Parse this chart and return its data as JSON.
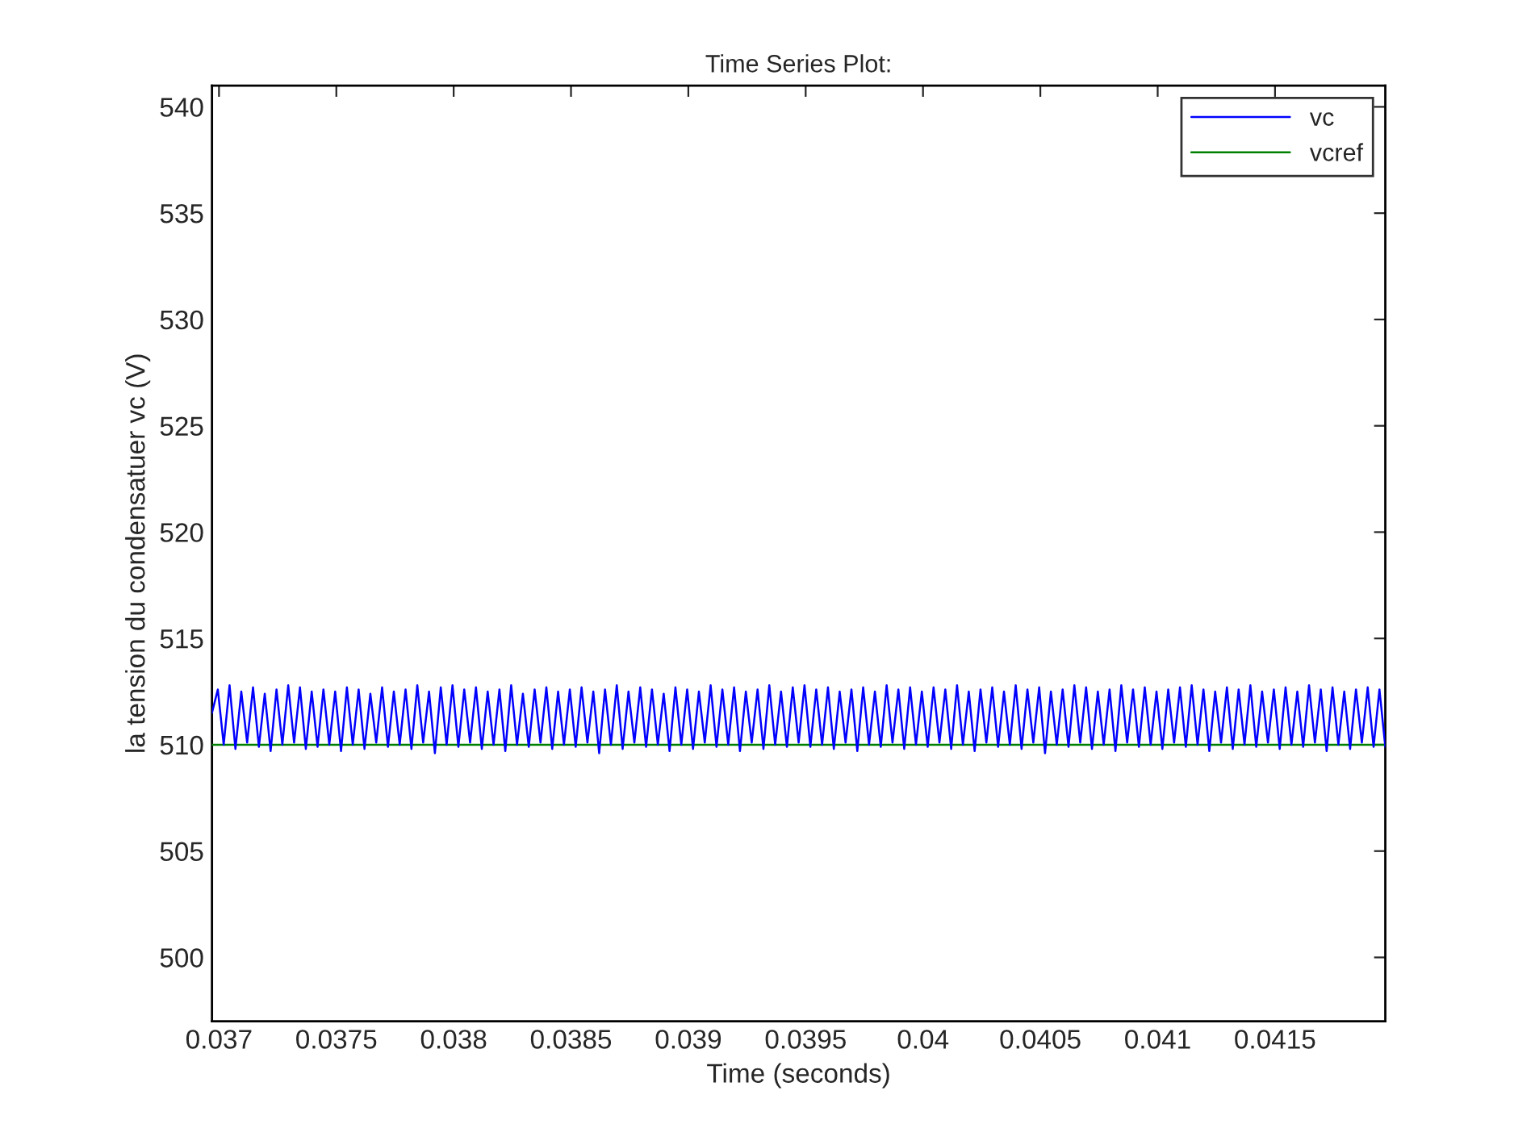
{
  "chart_data": {
    "type": "line",
    "title": "Time Series Plot:",
    "xlabel": "Time (seconds)",
    "ylabel": "la tension du condensatuer vc (V)",
    "xlim": [
      0.03697,
      0.04197
    ],
    "ylim": [
      497,
      541
    ],
    "xticks": [
      0.037,
      0.0375,
      0.038,
      0.0385,
      0.039,
      0.0395,
      0.04,
      0.0405,
      0.041,
      0.0415
    ],
    "yticks": [
      500,
      505,
      510,
      515,
      520,
      525,
      530,
      535,
      540
    ],
    "legend": "top right",
    "series": [
      {
        "name": "vc",
        "color": "#0000ff",
        "x": [
          0.03697,
          0.036995,
          0.03702,
          0.037045,
          0.03707,
          0.037095,
          0.03712,
          0.037145,
          0.03717,
          0.037195,
          0.03722,
          0.037245,
          0.03727,
          0.037295,
          0.03732,
          0.037345,
          0.03737,
          0.037395,
          0.03742,
          0.037445,
          0.03747,
          0.037495,
          0.03752,
          0.037545,
          0.03757,
          0.037595,
          0.03762,
          0.037645,
          0.03767,
          0.037695,
          0.03772,
          0.037745,
          0.03777,
          0.037795,
          0.03782,
          0.037845,
          0.03787,
          0.037895,
          0.03792,
          0.037945,
          0.03797,
          0.037995,
          0.03802,
          0.038045,
          0.03807,
          0.038095,
          0.03812,
          0.038145,
          0.03817,
          0.038195,
          0.03822,
          0.038245,
          0.03827,
          0.038295,
          0.03832,
          0.038345,
          0.03837,
          0.038395,
          0.03842,
          0.038445,
          0.03847,
          0.038495,
          0.03852,
          0.038545,
          0.03857,
          0.038595,
          0.03862,
          0.038645,
          0.03867,
          0.038695,
          0.03872,
          0.038745,
          0.03877,
          0.038795,
          0.03882,
          0.038845,
          0.03887,
          0.038895,
          0.03892,
          0.038945,
          0.03897,
          0.038995,
          0.03902,
          0.039045,
          0.03907,
          0.039095,
          0.03912,
          0.039145,
          0.03917,
          0.039195,
          0.03922,
          0.039245,
          0.03927,
          0.039295,
          0.03932,
          0.039345,
          0.03937,
          0.039395,
          0.03942,
          0.039445,
          0.03947,
          0.039495,
          0.03952,
          0.039545,
          0.03957,
          0.039595,
          0.03962,
          0.039645,
          0.03967,
          0.039695,
          0.03972,
          0.039745,
          0.03977,
          0.039795,
          0.03982,
          0.039845,
          0.03987,
          0.039895,
          0.03992,
          0.039945,
          0.03997,
          0.039995,
          0.04002,
          0.040045,
          0.04007,
          0.040095,
          0.04012,
          0.040145,
          0.04017,
          0.040195,
          0.04022,
          0.040245,
          0.04027,
          0.040295,
          0.04032,
          0.040345,
          0.04037,
          0.040395,
          0.04042,
          0.040445,
          0.04047,
          0.040495,
          0.04052,
          0.040545,
          0.04057,
          0.040595,
          0.04062,
          0.040645,
          0.04067,
          0.040695,
          0.04072,
          0.040745,
          0.04077,
          0.040795,
          0.04082,
          0.040845,
          0.04087,
          0.040895,
          0.04092,
          0.040945,
          0.04097,
          0.040995,
          0.04102,
          0.041045,
          0.04107,
          0.041095,
          0.04112,
          0.041145,
          0.04117,
          0.041195,
          0.04122,
          0.041245,
          0.04127,
          0.041295,
          0.04132,
          0.041345,
          0.04137,
          0.041395,
          0.04142,
          0.041445,
          0.04147,
          0.041495,
          0.04152,
          0.041545,
          0.04157,
          0.041595,
          0.04162,
          0.041645,
          0.04167,
          0.041695,
          0.04172,
          0.041745,
          0.04177,
          0.041795,
          0.04182,
          0.041845,
          0.04187,
          0.041895,
          0.04192,
          0.041945,
          0.04197
        ],
        "values": [
          511.5,
          512.6,
          510.0,
          512.8,
          509.8,
          512.5,
          510.1,
          512.7,
          509.9,
          512.4,
          509.7,
          512.6,
          510.0,
          512.8,
          510.1,
          512.7,
          509.8,
          512.5,
          509.9,
          512.6,
          510.0,
          512.5,
          509.7,
          512.7,
          510.0,
          512.6,
          509.8,
          512.4,
          510.1,
          512.7,
          509.9,
          512.5,
          510.0,
          512.6,
          509.8,
          512.8,
          510.1,
          512.5,
          509.6,
          512.7,
          510.0,
          512.8,
          509.9,
          512.6,
          510.1,
          512.7,
          509.8,
          512.5,
          510.0,
          512.6,
          509.7,
          512.8,
          510.0,
          512.4,
          509.9,
          512.6,
          510.1,
          512.7,
          509.8,
          512.5,
          510.0,
          512.6,
          509.9,
          512.7,
          510.1,
          512.5,
          509.6,
          512.6,
          510.0,
          512.8,
          509.8,
          512.5,
          510.1,
          512.7,
          509.9,
          512.6,
          510.0,
          512.4,
          509.7,
          512.7,
          510.0,
          512.6,
          509.8,
          512.5,
          510.1,
          512.8,
          509.9,
          512.6,
          510.0,
          512.7,
          509.7,
          512.5,
          510.1,
          512.6,
          509.8,
          512.8,
          510.0,
          512.5,
          509.9,
          512.7,
          510.1,
          512.8,
          509.9,
          512.6,
          510.0,
          512.7,
          509.8,
          512.5,
          510.1,
          512.6,
          509.7,
          512.7,
          510.0,
          512.5,
          509.9,
          512.8,
          510.1,
          512.6,
          509.8,
          512.7,
          510.0,
          512.5,
          509.9,
          512.7,
          510.1,
          512.6,
          509.8,
          512.8,
          510.0,
          512.5,
          509.7,
          512.6,
          510.1,
          512.7,
          509.9,
          512.5,
          510.0,
          512.8,
          509.8,
          512.6,
          510.1,
          512.7,
          509.6,
          512.5,
          510.0,
          512.6,
          509.9,
          512.8,
          510.1,
          512.7,
          509.8,
          512.5,
          510.0,
          512.6,
          509.7,
          512.8,
          510.1,
          512.6,
          509.9,
          512.7,
          510.0,
          512.5,
          509.8,
          512.6,
          510.1,
          512.7,
          509.9,
          512.8,
          510.0,
          512.6,
          509.7,
          512.5,
          510.1,
          512.7,
          509.8,
          512.6,
          510.0,
          512.8,
          509.9,
          512.5,
          510.1,
          512.6,
          509.8,
          512.7,
          510.0,
          512.5,
          509.9,
          512.8,
          510.1,
          512.6,
          509.7,
          512.7,
          510.0,
          512.5,
          509.8,
          512.6,
          510.1,
          512.7,
          509.9,
          512.6,
          509.9
        ]
      },
      {
        "name": "vcref",
        "color": "#008000",
        "x": [
          0.03697,
          0.04197
        ],
        "values": [
          510,
          510
        ]
      }
    ]
  }
}
